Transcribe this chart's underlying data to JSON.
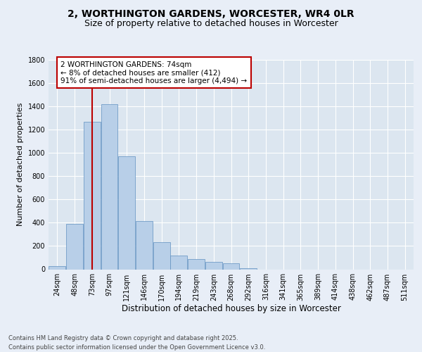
{
  "title_line1": "2, WORTHINGTON GARDENS, WORCESTER, WR4 0LR",
  "title_line2": "Size of property relative to detached houses in Worcester",
  "xlabel": "Distribution of detached houses by size in Worcester",
  "ylabel": "Number of detached properties",
  "bar_labels": [
    "24sqm",
    "48sqm",
    "73sqm",
    "97sqm",
    "121sqm",
    "146sqm",
    "170sqm",
    "194sqm",
    "219sqm",
    "243sqm",
    "268sqm",
    "292sqm",
    "316sqm",
    "341sqm",
    "365sqm",
    "389sqm",
    "414sqm",
    "438sqm",
    "462sqm",
    "487sqm",
    "511sqm"
  ],
  "bar_values": [
    30,
    390,
    1270,
    1420,
    970,
    415,
    235,
    115,
    85,
    65,
    50,
    10,
    0,
    0,
    0,
    0,
    0,
    0,
    0,
    0,
    0
  ],
  "bar_color": "#b8cfe8",
  "bar_edge_color": "#6090c0",
  "bg_color": "#e8eef7",
  "plot_bg_color": "#dce6f0",
  "grid_color": "#ffffff",
  "vline_x_index": 2,
  "vline_color": "#bb0000",
  "annotation_text": "2 WORTHINGTON GARDENS: 74sqm\n← 8% of detached houses are smaller (412)\n91% of semi-detached houses are larger (4,494) →",
  "annotation_box_edgecolor": "#bb0000",
  "ylim": [
    0,
    1800
  ],
  "yticks": [
    0,
    200,
    400,
    600,
    800,
    1000,
    1200,
    1400,
    1600,
    1800
  ],
  "footer_text": "Contains HM Land Registry data © Crown copyright and database right 2025.\nContains public sector information licensed under the Open Government Licence v3.0.",
  "title_fontsize": 10,
  "subtitle_fontsize": 9,
  "ylabel_fontsize": 8,
  "xlabel_fontsize": 8.5,
  "tick_fontsize": 7,
  "annotation_fontsize": 7.5,
  "footer_fontsize": 6
}
